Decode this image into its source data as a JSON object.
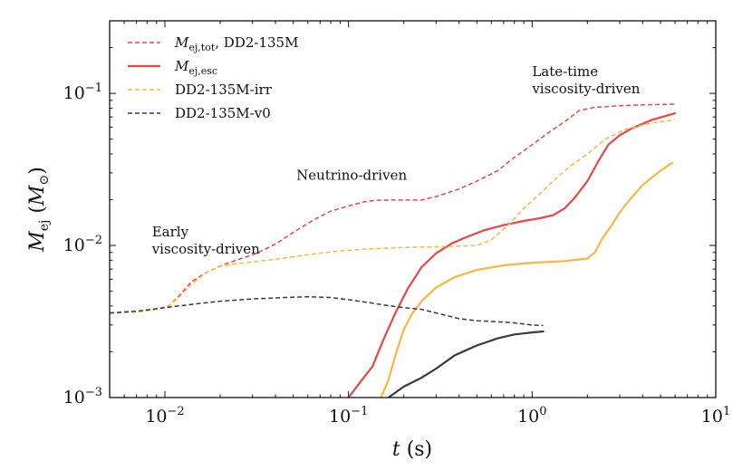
{
  "chart_data": {
    "type": "line",
    "x_scale": "log",
    "y_scale": "log",
    "xlim": [
      0.005,
      10
    ],
    "ylim": [
      0.001,
      0.3
    ],
    "xlabel": "t (s)",
    "ylabel": "M_ej (M_sun)",
    "x_ticks": [
      {
        "value": 0.01,
        "base": "10",
        "exp": "−2"
      },
      {
        "value": 0.1,
        "base": "10",
        "exp": "−1"
      },
      {
        "value": 1,
        "base": "10",
        "exp": "0"
      },
      {
        "value": 10,
        "base": "10",
        "exp": "1"
      }
    ],
    "y_ticks": [
      {
        "value": 0.001,
        "base": "10",
        "exp": "−3"
      },
      {
        "value": 0.01,
        "base": "10",
        "exp": "−2"
      },
      {
        "value": 0.1,
        "base": "10",
        "exp": "−1"
      }
    ],
    "legend": {
      "placement": "top-left",
      "entries": [
        {
          "label": "M_ej,tot, DD2-135M",
          "label_main": "M",
          "label_sub": "ej,tot",
          "label_suffix": ", DD2-135M",
          "color": "#e8474a",
          "dash": true
        },
        {
          "label": "M_ej,esc",
          "label_main": "M",
          "label_sub": "ej,esc",
          "label_suffix": "",
          "color": "#e8474a",
          "dash": false
        },
        {
          "label": "DD2-135M-irr",
          "label_main": "DD2-135M-irr",
          "label_sub": "",
          "label_suffix": "",
          "color": "#f9b642",
          "dash": true
        },
        {
          "label": "DD2-135M-v0",
          "label_main": "DD2-135M-v0",
          "label_sub": "",
          "label_suffix": "",
          "color": "#3b3b3b",
          "dash": true
        }
      ]
    },
    "annotations": [
      {
        "lines": [
          "Early",
          "viscosity-driven"
        ],
        "x": 0.0085,
        "y": 0.0115
      },
      {
        "lines": [
          "Neutrino-driven"
        ],
        "x": 0.052,
        "y": 0.027
      },
      {
        "lines": [
          "Late-time",
          "viscosity-driven"
        ],
        "x": 1.0,
        "y": 0.13
      }
    ],
    "series": [
      {
        "name": "M_ej,tot, DD2-135M",
        "color": "#e8474a",
        "dash": true,
        "width": 1.5,
        "x": [
          0.005,
          0.007,
          0.009,
          0.0105,
          0.012,
          0.014,
          0.017,
          0.021,
          0.026,
          0.031,
          0.04,
          0.05,
          0.065,
          0.08,
          0.1,
          0.12,
          0.14,
          0.17,
          0.2,
          0.25,
          0.3,
          0.4,
          0.5,
          0.65,
          0.8,
          1.0,
          1.25,
          1.5,
          1.8,
          2.2,
          3.0,
          4.0,
          6.0
        ],
        "y": [
          0.0036,
          0.00365,
          0.0038,
          0.004,
          0.0047,
          0.0058,
          0.0067,
          0.0075,
          0.0082,
          0.0088,
          0.0102,
          0.0122,
          0.0148,
          0.0168,
          0.0182,
          0.0193,
          0.0198,
          0.0199,
          0.0199,
          0.0199,
          0.021,
          0.0235,
          0.0265,
          0.031,
          0.038,
          0.046,
          0.056,
          0.065,
          0.077,
          0.081,
          0.083,
          0.084,
          0.085
        ]
      },
      {
        "name": "M_ej,esc",
        "color": "#e8474a",
        "dash": false,
        "width": 2.2,
        "x": [
          0.1,
          0.115,
          0.135,
          0.155,
          0.18,
          0.21,
          0.25,
          0.3,
          0.37,
          0.45,
          0.55,
          0.7,
          0.9,
          1.1,
          1.3,
          1.5,
          1.7,
          2.0,
          2.3,
          2.6,
          3.0,
          3.5,
          4.5,
          6.0
        ],
        "y": [
          0.001,
          0.00125,
          0.0016,
          0.0024,
          0.0036,
          0.0052,
          0.0072,
          0.0089,
          0.0104,
          0.0115,
          0.0126,
          0.0136,
          0.0145,
          0.0151,
          0.0158,
          0.0175,
          0.0205,
          0.0265,
          0.036,
          0.046,
          0.053,
          0.059,
          0.067,
          0.074
        ]
      },
      {
        "name": "DD2-135M-irr",
        "color": "#f9b642",
        "dash": true,
        "width": 1.5,
        "x": [
          0.005,
          0.007,
          0.009,
          0.0105,
          0.012,
          0.014,
          0.017,
          0.02,
          0.025,
          0.03,
          0.04,
          0.06,
          0.09,
          0.13,
          0.2,
          0.3,
          0.4,
          0.5,
          0.6,
          0.75,
          0.9,
          1.1,
          1.3,
          1.6,
          2.0,
          2.5,
          3.2,
          4.5,
          6.0
        ],
        "y": [
          0.0036,
          0.00365,
          0.0038,
          0.004,
          0.0046,
          0.0056,
          0.0067,
          0.0073,
          0.0076,
          0.0078,
          0.0081,
          0.0087,
          0.0092,
          0.0095,
          0.0097,
          0.0098,
          0.0099,
          0.01,
          0.0109,
          0.0138,
          0.0175,
          0.0218,
          0.0265,
          0.033,
          0.04,
          0.05,
          0.058,
          0.064,
          0.067
        ]
      },
      {
        "name": "DD2-135M-irr esc",
        "color": "#f9b642",
        "dash": false,
        "width": 2.2,
        "x": [
          0.15,
          0.165,
          0.18,
          0.2,
          0.22,
          0.25,
          0.3,
          0.38,
          0.5,
          0.7,
          1.0,
          1.5,
          2.0,
          2.2,
          2.4,
          2.7,
          3.0,
          3.4,
          4.0,
          5.0,
          5.8
        ],
        "y": [
          0.001,
          0.0013,
          0.0019,
          0.0028,
          0.0035,
          0.0043,
          0.0053,
          0.0062,
          0.0069,
          0.0074,
          0.0077,
          0.0079,
          0.0082,
          0.009,
          0.011,
          0.0135,
          0.0165,
          0.02,
          0.025,
          0.031,
          0.035
        ]
      },
      {
        "name": "DD2-135M-v0",
        "color": "#3b3b3b",
        "dash": true,
        "width": 1.5,
        "x": [
          0.005,
          0.007,
          0.01,
          0.014,
          0.02,
          0.03,
          0.045,
          0.06,
          0.08,
          0.1,
          0.13,
          0.17,
          0.2,
          0.25,
          0.3,
          0.4,
          0.5,
          0.65,
          0.8,
          1.0,
          1.15
        ],
        "y": [
          0.0036,
          0.0037,
          0.0039,
          0.0041,
          0.0043,
          0.00445,
          0.00455,
          0.0046,
          0.00455,
          0.0044,
          0.0042,
          0.004,
          0.0039,
          0.0038,
          0.0036,
          0.0033,
          0.0032,
          0.00315,
          0.0031,
          0.003,
          0.00298
        ]
      },
      {
        "name": "DD2-135M-v0 esc",
        "color": "#3b3b3b",
        "dash": false,
        "width": 2.2,
        "x": [
          0.165,
          0.2,
          0.25,
          0.3,
          0.38,
          0.5,
          0.65,
          0.8,
          1.0,
          1.15
        ],
        "y": [
          0.001,
          0.00118,
          0.00135,
          0.00155,
          0.0019,
          0.0022,
          0.00245,
          0.0026,
          0.00268,
          0.00272
        ]
      }
    ]
  }
}
